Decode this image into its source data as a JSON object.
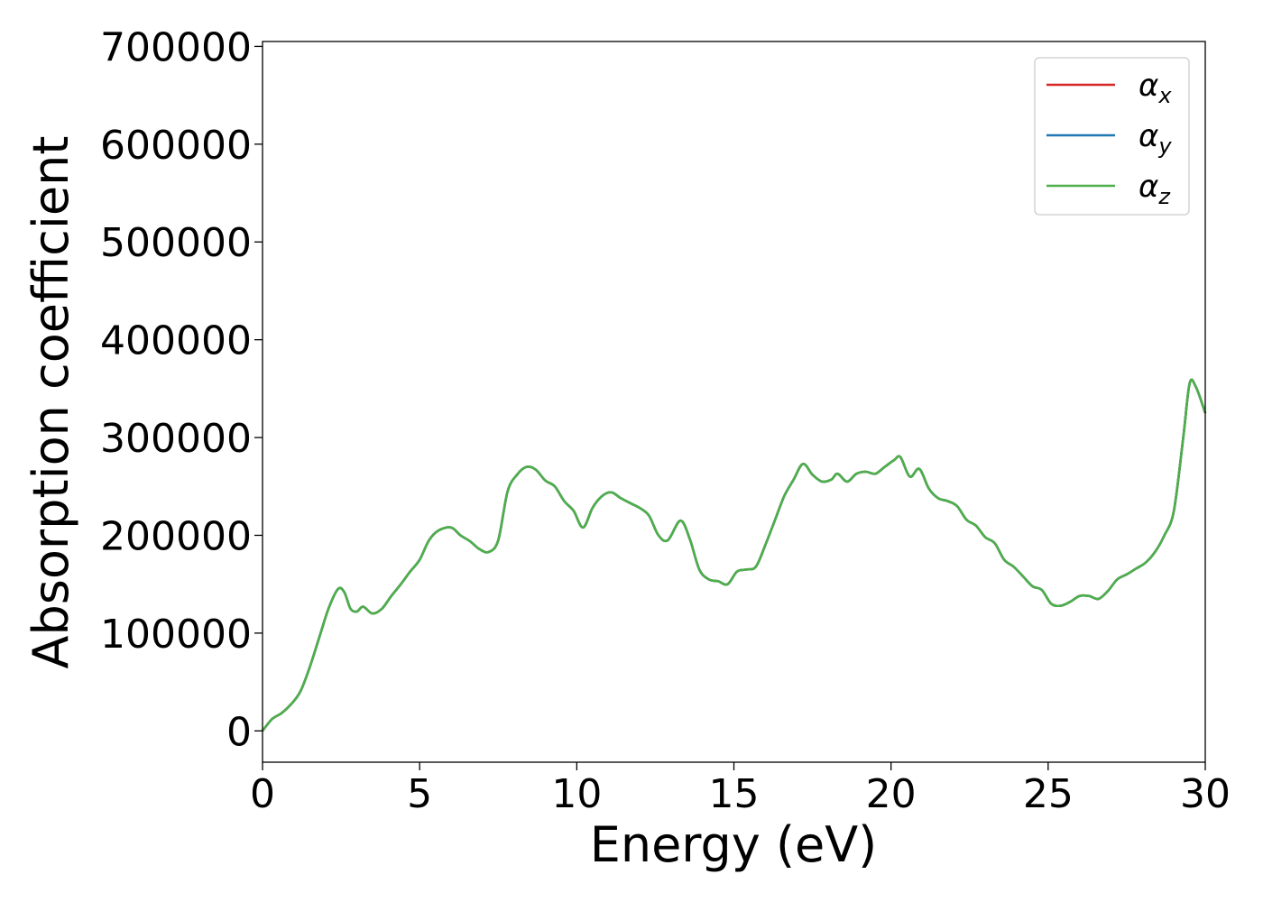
{
  "chart_data": {
    "type": "line",
    "title": "",
    "xlabel": "Energy (eV)",
    "ylabel": "Absorption coefficient",
    "xlim": [
      0,
      30
    ],
    "ylim": [
      -32000,
      705000
    ],
    "xticks": [
      "0",
      "5",
      "10",
      "15",
      "20",
      "25",
      "30"
    ],
    "xtick_values": [
      0,
      5,
      10,
      15,
      20,
      25,
      30
    ],
    "yticks": [
      "0",
      "100000",
      "200000",
      "300000",
      "400000",
      "500000",
      "600000",
      "700000"
    ],
    "ytick_values": [
      0,
      100000,
      200000,
      300000,
      400000,
      500000,
      600000,
      700000
    ],
    "grid": false,
    "legend_position": "top-right",
    "x": [
      0,
      0.3,
      0.6,
      0.9,
      1.2,
      1.5,
      1.8,
      2.1,
      2.4,
      2.6,
      2.8,
      3.0,
      3.2,
      3.5,
      3.8,
      4.1,
      4.4,
      4.7,
      5.0,
      5.3,
      5.6,
      6.0,
      6.3,
      6.6,
      6.9,
      7.2,
      7.5,
      7.8,
      8.1,
      8.4,
      8.7,
      9.0,
      9.3,
      9.6,
      9.9,
      10.2,
      10.5,
      10.8,
      11.1,
      11.4,
      11.7,
      12.0,
      12.3,
      12.6,
      12.9,
      13.3,
      13.6,
      13.9,
      14.2,
      14.5,
      14.8,
      15.1,
      15.4,
      15.7,
      16.0,
      16.3,
      16.6,
      16.9,
      17.2,
      17.5,
      17.8,
      18.1,
      18.3,
      18.6,
      18.9,
      19.2,
      19.5,
      19.8,
      20.1,
      20.3,
      20.6,
      20.9,
      21.2,
      21.5,
      21.8,
      22.1,
      22.4,
      22.7,
      23.0,
      23.3,
      23.6,
      23.9,
      24.2,
      24.5,
      24.8,
      25.1,
      25.4,
      25.7,
      26.0,
      26.3,
      26.6,
      26.9,
      27.2,
      27.5,
      27.8,
      28.1,
      28.4,
      28.7,
      29.0,
      29.3,
      29.5,
      29.7,
      30.0
    ],
    "series": [
      {
        "name": "α_x",
        "color": "#d62728",
        "values": [
          0,
          12000,
          18000,
          27000,
          40000,
          65000,
          95000,
          125000,
          145000,
          142000,
          125000,
          122000,
          127000,
          120000,
          125000,
          138000,
          150000,
          163000,
          175000,
          195000,
          205000,
          208000,
          200000,
          194000,
          186000,
          183000,
          195000,
          245000,
          262000,
          270000,
          267000,
          256000,
          250000,
          235000,
          225000,
          208000,
          228000,
          240000,
          244000,
          238000,
          233000,
          228000,
          220000,
          200000,
          195000,
          215000,
          196000,
          165000,
          155000,
          153000,
          150000,
          163000,
          165000,
          168000,
          190000,
          215000,
          240000,
          257000,
          273000,
          262000,
          255000,
          257000,
          263000,
          255000,
          263000,
          265000,
          263000,
          270000,
          277000,
          280000,
          260000,
          268000,
          248000,
          238000,
          235000,
          230000,
          216000,
          210000,
          198000,
          192000,
          175000,
          168000,
          158000,
          148000,
          144000,
          130000,
          128000,
          132000,
          138000,
          138000,
          135000,
          143000,
          155000,
          160000,
          166000,
          172000,
          183000,
          200000,
          225000,
          300000,
          355000,
          352000,
          325000
        ]
      },
      {
        "name": "α_y",
        "color": "#1f77b4",
        "values": [
          0,
          12000,
          18000,
          27000,
          40000,
          65000,
          95000,
          125000,
          145000,
          142000,
          125000,
          122000,
          127000,
          120000,
          125000,
          138000,
          150000,
          163000,
          175000,
          195000,
          205000,
          208000,
          200000,
          194000,
          186000,
          183000,
          195000,
          245000,
          262000,
          270000,
          267000,
          256000,
          250000,
          235000,
          225000,
          208000,
          228000,
          240000,
          244000,
          238000,
          233000,
          228000,
          220000,
          200000,
          195000,
          215000,
          196000,
          165000,
          155000,
          153000,
          150000,
          163000,
          165000,
          168000,
          190000,
          215000,
          240000,
          257000,
          273000,
          262000,
          255000,
          257000,
          263000,
          255000,
          263000,
          265000,
          263000,
          270000,
          277000,
          280000,
          260000,
          268000,
          248000,
          238000,
          235000,
          230000,
          216000,
          210000,
          198000,
          192000,
          175000,
          168000,
          158000,
          148000,
          144000,
          130000,
          128000,
          132000,
          138000,
          138000,
          135000,
          143000,
          155000,
          160000,
          166000,
          172000,
          183000,
          200000,
          225000,
          300000,
          355000,
          352000,
          325000
        ]
      },
      {
        "name": "α_z",
        "color": "#4daf4a",
        "values": [
          0,
          12000,
          18000,
          27000,
          40000,
          65000,
          95000,
          125000,
          145000,
          142000,
          125000,
          122000,
          127000,
          120000,
          125000,
          138000,
          150000,
          163000,
          175000,
          195000,
          205000,
          208000,
          200000,
          194000,
          186000,
          183000,
          195000,
          245000,
          262000,
          270000,
          267000,
          256000,
          250000,
          235000,
          225000,
          208000,
          228000,
          240000,
          244000,
          238000,
          233000,
          228000,
          220000,
          200000,
          195000,
          215000,
          196000,
          165000,
          155000,
          153000,
          150000,
          163000,
          165000,
          168000,
          190000,
          215000,
          240000,
          257000,
          273000,
          262000,
          255000,
          257000,
          263000,
          255000,
          263000,
          265000,
          263000,
          270000,
          277000,
          280000,
          260000,
          268000,
          248000,
          238000,
          235000,
          230000,
          216000,
          210000,
          198000,
          192000,
          175000,
          168000,
          158000,
          148000,
          144000,
          130000,
          128000,
          132000,
          138000,
          138000,
          135000,
          143000,
          155000,
          160000,
          166000,
          172000,
          183000,
          200000,
          225000,
          300000,
          355000,
          352000,
          325000
        ]
      }
    ],
    "legend": [
      {
        "base": "α",
        "sub": "x"
      },
      {
        "base": "α",
        "sub": "y"
      },
      {
        "base": "α",
        "sub": "z"
      }
    ]
  }
}
